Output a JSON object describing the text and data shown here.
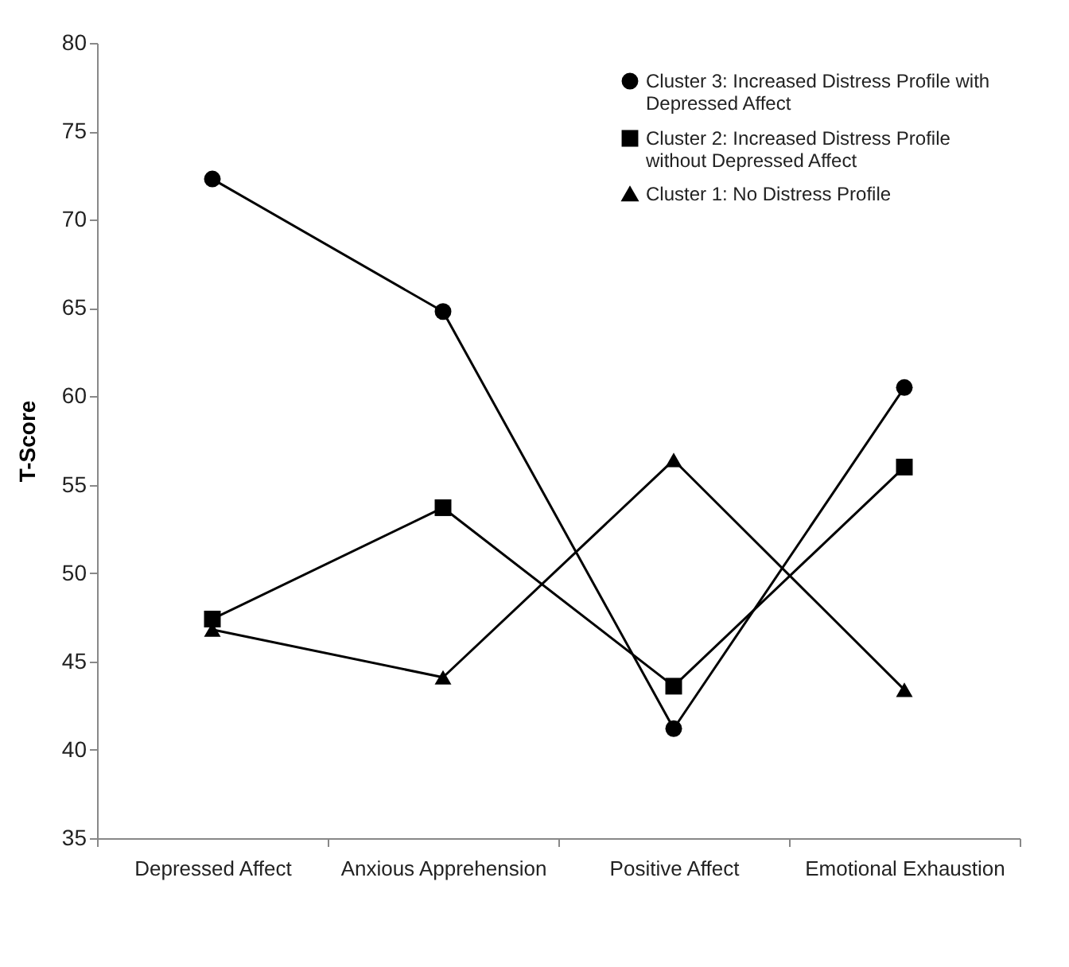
{
  "chart_data": {
    "type": "line",
    "ylabel": "T-Score",
    "categories": [
      "Depressed Affect",
      "Anxious Apprehension",
      "Positive Affect",
      "Emotional Exhaustion"
    ],
    "ylim": [
      35,
      80
    ],
    "yticks": [
      35,
      40,
      45,
      50,
      55,
      60,
      65,
      70,
      75,
      80
    ],
    "grid": false,
    "legend": "top right",
    "line_style": "solid",
    "series": [
      {
        "name": "Cluster 3: Increased Distress Profile with Depressed Affect",
        "color": "#000000",
        "marker": "circle",
        "values": [
          72.3,
          64.8,
          41.2,
          60.5
        ]
      },
      {
        "name": "Cluster 2: Increased Distress Profile without Depressed Affect",
        "color": "#000000",
        "marker": "square",
        "values": [
          47.4,
          53.7,
          43.6,
          56.0
        ]
      },
      {
        "name": "Cluster 1: No Distress Profile",
        "color": "#000000",
        "marker": "triangle",
        "values": [
          46.8,
          44.1,
          56.4,
          43.4
        ]
      }
    ]
  }
}
